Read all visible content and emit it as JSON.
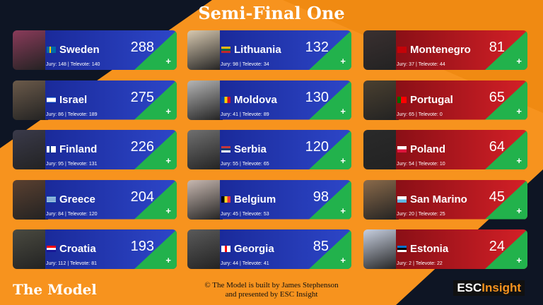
{
  "header": {
    "title": "Semi-Final One"
  },
  "labels": {
    "jury": "Jury:",
    "televote": "Televote:",
    "separator": "|",
    "plus": "+"
  },
  "entries": [
    {
      "country": "Sweden",
      "total": 288,
      "jury": 148,
      "televote": 140
    },
    {
      "country": "Israel",
      "total": 275,
      "jury": 86,
      "televote": 189
    },
    {
      "country": "Finland",
      "total": 226,
      "jury": 95,
      "televote": 131
    },
    {
      "country": "Greece",
      "total": 204,
      "jury": 84,
      "televote": 120
    },
    {
      "country": "Croatia",
      "total": 193,
      "jury": 112,
      "televote": 81
    },
    {
      "country": "Lithuania",
      "total": 132,
      "jury": 98,
      "televote": 34
    },
    {
      "country": "Moldova",
      "total": 130,
      "jury": 41,
      "televote": 89
    },
    {
      "country": "Serbia",
      "total": 120,
      "jury": 55,
      "televote": 65
    },
    {
      "country": "Belgium",
      "total": 98,
      "jury": 45,
      "televote": 53
    },
    {
      "country": "Georgia",
      "total": 85,
      "jury": 44,
      "televote": 41
    },
    {
      "country": "Montenegro",
      "total": 81,
      "jury": 37,
      "televote": 44
    },
    {
      "country": "Portugal",
      "total": 65,
      "jury": 65,
      "televote": 0
    },
    {
      "country": "Poland",
      "total": 64,
      "jury": 54,
      "televote": 10
    },
    {
      "country": "San Marino",
      "total": 45,
      "jury": 20,
      "televote": 25
    },
    {
      "country": "Estonia",
      "total": 24,
      "jury": 2,
      "televote": 22
    }
  ],
  "footer": {
    "left": "The Model",
    "credit_line1": "© The Model is built by James Stephenson",
    "credit_line2": "and presented by ESC Insight",
    "logo_esc": "ESC",
    "logo_insight": "Insight"
  }
}
